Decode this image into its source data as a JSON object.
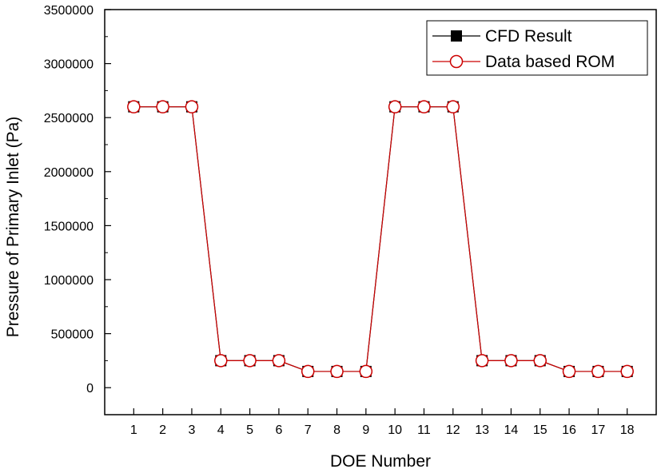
{
  "chart_data": {
    "type": "line",
    "title": "",
    "xlabel": "DOE Number",
    "ylabel": "Pressure of Primary Inlet (Pa)",
    "x": [
      1,
      2,
      3,
      4,
      5,
      6,
      7,
      8,
      9,
      10,
      11,
      12,
      13,
      14,
      15,
      16,
      17,
      18
    ],
    "xlim": [
      0,
      19
    ],
    "ylim": [
      -250000,
      3500000
    ],
    "yticks": [
      0,
      500000,
      1000000,
      1500000,
      2000000,
      2500000,
      3000000,
      3500000
    ],
    "ytick_labels": [
      "0",
      "500000",
      "1000000",
      "1500000",
      "2000000",
      "2500000",
      "3000000",
      "3500000"
    ],
    "xtick_labels": [
      "1",
      "2",
      "3",
      "4",
      "5",
      "6",
      "7",
      "8",
      "9",
      "10",
      "11",
      "12",
      "13",
      "14",
      "15",
      "16",
      "17",
      "18"
    ],
    "grid": false,
    "legend_position": "top-right",
    "series": [
      {
        "name": "CFD Result",
        "color": "#000000",
        "marker": "filled-square",
        "values": [
          2600000,
          2600000,
          2600000,
          250000,
          250000,
          250000,
          150000,
          150000,
          150000,
          2600000,
          2600000,
          2600000,
          250000,
          250000,
          250000,
          150000,
          150000,
          150000
        ]
      },
      {
        "name": "Data based ROM",
        "color": "#cc0000",
        "marker": "open-circle",
        "values": [
          2600000,
          2600000,
          2600000,
          250000,
          250000,
          250000,
          150000,
          150000,
          150000,
          2600000,
          2600000,
          2600000,
          250000,
          250000,
          250000,
          150000,
          150000,
          150000
        ]
      }
    ]
  }
}
